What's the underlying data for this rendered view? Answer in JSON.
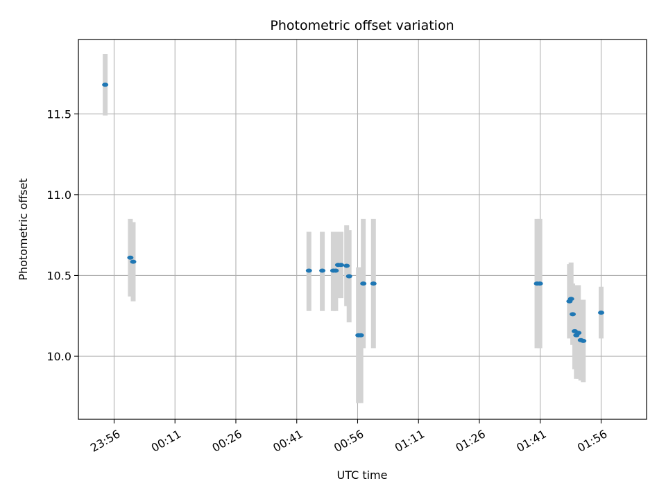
{
  "chart_data": {
    "type": "scatter",
    "title": "Photometric offset variation",
    "xlabel": "UTC time",
    "ylabel": "Photometric offset",
    "x_tick_labels": [
      "23:56",
      "00:11",
      "00:26",
      "00:41",
      "00:56",
      "01:11",
      "01:26",
      "01:41",
      "01:56"
    ],
    "x_tick_minutes": [
      -4,
      11,
      26,
      41,
      56,
      71,
      86,
      101,
      116
    ],
    "y_ticks": [
      10.0,
      10.5,
      11.0,
      11.5
    ],
    "y_tick_labels": [
      "10.0",
      "10.5",
      "11.0",
      "11.5"
    ],
    "xlim_minutes": [
      -12.8,
      127.2
    ],
    "ylim": [
      9.61,
      11.96
    ],
    "grid": true,
    "point_color": "#1f77b4",
    "errorbar_color": "#d3d3d3",
    "points": [
      {
        "t": -6.2,
        "y": 11.68,
        "ylow": 11.49,
        "yhigh": 11.87
      },
      {
        "t": 0.0,
        "y": 10.61,
        "ylow": 10.37,
        "yhigh": 10.85
      },
      {
        "t": 0.7,
        "y": 10.585,
        "ylow": 10.34,
        "yhigh": 10.83
      },
      {
        "t": 44.0,
        "y": 10.53,
        "ylow": 10.28,
        "yhigh": 10.77
      },
      {
        "t": 47.3,
        "y": 10.53,
        "ylow": 10.28,
        "yhigh": 10.77
      },
      {
        "t": 50.0,
        "y": 10.53,
        "ylow": 10.28,
        "yhigh": 10.77
      },
      {
        "t": 50.6,
        "y": 10.53,
        "ylow": 10.28,
        "yhigh": 10.77
      },
      {
        "t": 51.2,
        "y": 10.565,
        "ylow": 10.36,
        "yhigh": 10.77
      },
      {
        "t": 51.9,
        "y": 10.565,
        "ylow": 10.36,
        "yhigh": 10.77
      },
      {
        "t": 53.3,
        "y": 10.56,
        "ylow": 10.31,
        "yhigh": 10.81
      },
      {
        "t": 53.9,
        "y": 10.495,
        "ylow": 10.21,
        "yhigh": 10.78
      },
      {
        "t": 56.2,
        "y": 10.13,
        "ylow": 9.71,
        "yhigh": 10.55
      },
      {
        "t": 56.8,
        "y": 10.13,
        "ylow": 9.71,
        "yhigh": 10.55
      },
      {
        "t": 57.4,
        "y": 10.45,
        "ylow": 10.05,
        "yhigh": 10.85
      },
      {
        "t": 59.9,
        "y": 10.45,
        "ylow": 10.05,
        "yhigh": 10.85
      },
      {
        "t": 100.2,
        "y": 10.45,
        "ylow": 10.05,
        "yhigh": 10.85
      },
      {
        "t": 100.9,
        "y": 10.45,
        "ylow": 10.05,
        "yhigh": 10.85
      },
      {
        "t": 108.2,
        "y": 10.34,
        "ylow": 10.11,
        "yhigh": 10.57
      },
      {
        "t": 108.6,
        "y": 10.355,
        "ylow": 10.12,
        "yhigh": 10.58
      },
      {
        "t": 109.0,
        "y": 10.26,
        "ylow": 10.07,
        "yhigh": 10.45
      },
      {
        "t": 109.5,
        "y": 10.155,
        "ylow": 9.92,
        "yhigh": 10.44
      },
      {
        "t": 109.9,
        "y": 10.13,
        "ylow": 9.86,
        "yhigh": 10.44
      },
      {
        "t": 110.4,
        "y": 10.145,
        "ylow": 9.86,
        "yhigh": 10.44
      },
      {
        "t": 111.0,
        "y": 10.1,
        "ylow": 9.85,
        "yhigh": 10.35
      },
      {
        "t": 111.6,
        "y": 10.095,
        "ylow": 9.84,
        "yhigh": 10.35
      },
      {
        "t": 116.0,
        "y": 10.27,
        "ylow": 10.11,
        "yhigh": 10.43
      }
    ]
  }
}
